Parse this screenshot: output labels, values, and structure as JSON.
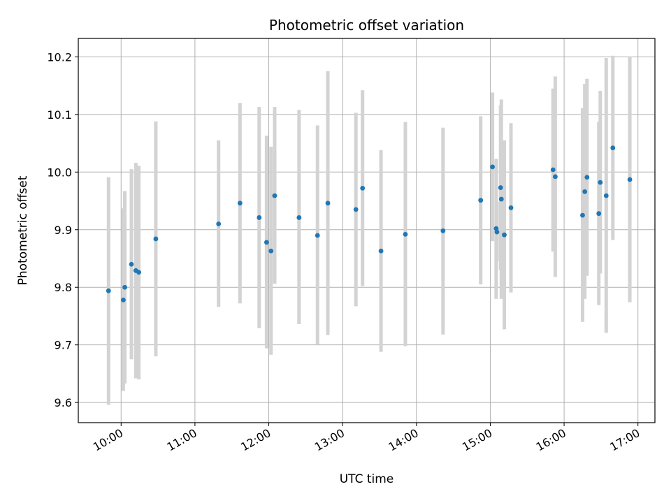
{
  "chart_data": {
    "type": "scatter",
    "title": "Photometric offset variation",
    "xlabel": "UTC time",
    "ylabel": "Photometric offset",
    "x_unit": "UTC time of day (decimal hours)",
    "xlim": [
      9.42,
      17.23
    ],
    "ylim": [
      9.565,
      10.232
    ],
    "x_ticks": [
      {
        "value": 10,
        "label": "10:00"
      },
      {
        "value": 11,
        "label": "11:00"
      },
      {
        "value": 12,
        "label": "12:00"
      },
      {
        "value": 13,
        "label": "13:00"
      },
      {
        "value": 14,
        "label": "14:00"
      },
      {
        "value": 15,
        "label": "15:00"
      },
      {
        "value": 16,
        "label": "16:00"
      },
      {
        "value": 17,
        "label": "17:00"
      }
    ],
    "y_ticks": [
      {
        "value": 9.6,
        "label": "9.6"
      },
      {
        "value": 9.7,
        "label": "9.7"
      },
      {
        "value": 9.8,
        "label": "9.8"
      },
      {
        "value": 9.9,
        "label": "9.9"
      },
      {
        "value": 10.0,
        "label": "10.0"
      },
      {
        "value": 10.1,
        "label": "10.1"
      },
      {
        "value": 10.2,
        "label": "10.2"
      }
    ],
    "grid": true,
    "marker_color": "#1f77b4",
    "errorbar_color": "#d3d3d3",
    "points": [
      {
        "x": 9.83,
        "y": 9.794,
        "y_low": 9.596,
        "y_high": 9.991
      },
      {
        "x": 10.03,
        "y": 9.778,
        "y_low": 9.62,
        "y_high": 9.937
      },
      {
        "x": 10.05,
        "y": 9.8,
        "y_low": 9.633,
        "y_high": 9.967
      },
      {
        "x": 10.14,
        "y": 9.84,
        "y_low": 9.675,
        "y_high": 10.005
      },
      {
        "x": 10.2,
        "y": 9.829,
        "y_low": 9.642,
        "y_high": 10.016
      },
      {
        "x": 10.24,
        "y": 9.826,
        "y_low": 9.64,
        "y_high": 10.011
      },
      {
        "x": 10.47,
        "y": 9.884,
        "y_low": 9.68,
        "y_high": 10.088
      },
      {
        "x": 11.32,
        "y": 9.91,
        "y_low": 9.766,
        "y_high": 10.055
      },
      {
        "x": 11.61,
        "y": 9.946,
        "y_low": 9.772,
        "y_high": 10.12
      },
      {
        "x": 11.87,
        "y": 9.921,
        "y_low": 9.729,
        "y_high": 10.113
      },
      {
        "x": 11.97,
        "y": 9.878,
        "y_low": 9.694,
        "y_high": 10.063
      },
      {
        "x": 12.03,
        "y": 9.863,
        "y_low": 9.683,
        "y_high": 10.044
      },
      {
        "x": 12.08,
        "y": 9.959,
        "y_low": 9.806,
        "y_high": 10.113
      },
      {
        "x": 12.41,
        "y": 9.921,
        "y_low": 9.736,
        "y_high": 10.108
      },
      {
        "x": 12.66,
        "y": 9.89,
        "y_low": 9.7,
        "y_high": 10.081
      },
      {
        "x": 12.8,
        "y": 9.946,
        "y_low": 9.717,
        "y_high": 10.175
      },
      {
        "x": 13.18,
        "y": 9.935,
        "y_low": 9.767,
        "y_high": 10.103
      },
      {
        "x": 13.27,
        "y": 9.972,
        "y_low": 9.802,
        "y_high": 10.142
      },
      {
        "x": 13.52,
        "y": 9.863,
        "y_low": 9.688,
        "y_high": 10.038
      },
      {
        "x": 13.85,
        "y": 9.892,
        "y_low": 9.698,
        "y_high": 10.087
      },
      {
        "x": 14.36,
        "y": 9.898,
        "y_low": 9.718,
        "y_high": 10.077
      },
      {
        "x": 14.87,
        "y": 9.951,
        "y_low": 9.805,
        "y_high": 10.097
      },
      {
        "x": 15.03,
        "y": 10.009,
        "y_low": 9.88,
        "y_high": 10.138
      },
      {
        "x": 15.08,
        "y": 9.902,
        "y_low": 9.78,
        "y_high": 10.023
      },
      {
        "x": 15.09,
        "y": 9.896,
        "y_low": 9.845,
        "y_high": 9.948
      },
      {
        "x": 15.14,
        "y": 9.973,
        "y_low": 9.83,
        "y_high": 10.116
      },
      {
        "x": 15.15,
        "y": 9.953,
        "y_low": 9.78,
        "y_high": 10.126
      },
      {
        "x": 15.19,
        "y": 9.891,
        "y_low": 9.727,
        "y_high": 10.055
      },
      {
        "x": 15.28,
        "y": 9.938,
        "y_low": 9.791,
        "y_high": 10.085
      },
      {
        "x": 15.85,
        "y": 10.004,
        "y_low": 9.862,
        "y_high": 10.145
      },
      {
        "x": 15.88,
        "y": 9.992,
        "y_low": 9.818,
        "y_high": 10.166
      },
      {
        "x": 16.25,
        "y": 9.925,
        "y_low": 9.74,
        "y_high": 10.111
      },
      {
        "x": 16.28,
        "y": 9.966,
        "y_low": 9.78,
        "y_high": 10.153
      },
      {
        "x": 16.31,
        "y": 9.991,
        "y_low": 9.82,
        "y_high": 10.162
      },
      {
        "x": 16.47,
        "y": 9.928,
        "y_low": 9.769,
        "y_high": 10.087
      },
      {
        "x": 16.49,
        "y": 9.982,
        "y_low": 9.824,
        "y_high": 10.141
      },
      {
        "x": 16.57,
        "y": 9.959,
        "y_low": 9.721,
        "y_high": 10.198
      },
      {
        "x": 16.66,
        "y": 10.042,
        "y_low": 9.882,
        "y_high": 10.202
      },
      {
        "x": 16.89,
        "y": 9.987,
        "y_low": 9.774,
        "y_high": 10.2
      }
    ]
  }
}
